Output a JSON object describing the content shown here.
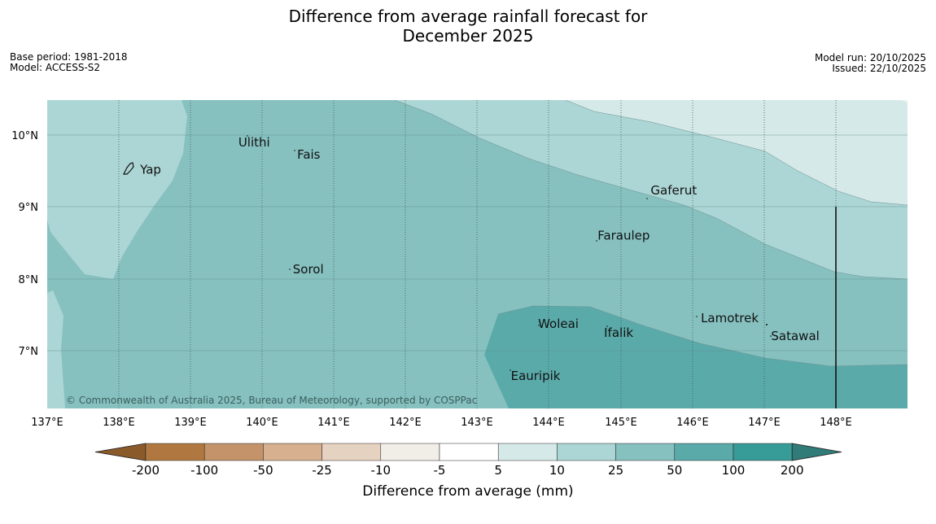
{
  "title_line1": "Difference from average rainfall forecast for",
  "title_line2": "December 2025",
  "base_period": "Base period: 1981-2018",
  "model": "Model: ACCESS-S2",
  "model_run": "Model run: 20/10/2025",
  "issued": "Issued: 22/10/2025",
  "copyright": "© Commonwealth of Australia 2025, Bureau of Meteorology, supported by COSPPac",
  "lat_labels": [
    "10°N",
    "9°N",
    "8°N",
    "7°N"
  ],
  "lon_labels": [
    "137°E",
    "138°E",
    "139°E",
    "140°E",
    "141°E",
    "142°E",
    "143°E",
    "144°E",
    "145°E",
    "146°E",
    "147°E",
    "148°E"
  ],
  "places": [
    {
      "name": "Yap",
      "lon": 138.25,
      "lat": 9.52
    },
    {
      "name": "Ulithi",
      "lon": 139.62,
      "lat": 9.9
    },
    {
      "name": "Fais",
      "lon": 140.44,
      "lat": 9.73
    },
    {
      "name": "Gaferut",
      "lon": 145.37,
      "lat": 9.23
    },
    {
      "name": "Faraulep",
      "lon": 144.63,
      "lat": 8.6
    },
    {
      "name": "Sorol",
      "lon": 140.38,
      "lat": 8.13
    },
    {
      "name": "Lamotrek",
      "lon": 146.07,
      "lat": 7.45
    },
    {
      "name": "Woleai",
      "lon": 143.8,
      "lat": 7.37
    },
    {
      "name": "Ifalik",
      "lon": 144.72,
      "lat": 7.25
    },
    {
      "name": "Satawal",
      "lon": 147.05,
      "lat": 7.2
    },
    {
      "name": "Eauripik",
      "lon": 143.42,
      "lat": 6.65
    }
  ],
  "legend": {
    "title": "Difference from average (mm)",
    "ticks": [
      "-200",
      "-100",
      "-50",
      "-25",
      "-10",
      "-5",
      "5",
      "10",
      "25",
      "50",
      "100",
      "200"
    ],
    "colors": [
      "#8b5a2b",
      "#b07840",
      "#c4936a",
      "#d6b08f",
      "#e6d2c0",
      "#f1ede7",
      "#ffffff",
      "#d5e9e8",
      "#acd6d5",
      "#86c1c0",
      "#5baaaa",
      "#379b98",
      "#317b78"
    ]
  },
  "map_colors": {
    "band_10_25": "#acd6d5",
    "band_25_50": "#86c1c0",
    "band_50_100": "#5baaaa",
    "band_5_10": "#d5e9e8"
  }
}
